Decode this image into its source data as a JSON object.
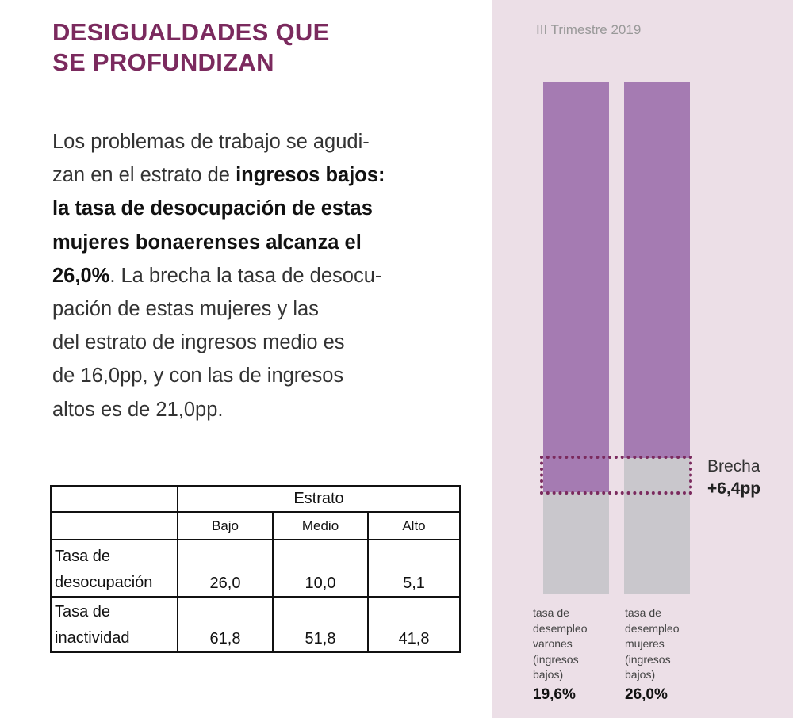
{
  "title": [
    "DESIGUALDADES QUE",
    "SE PROFUNDIZAN"
  ],
  "paragraph": {
    "l1": "Los problemas de trabajo se agudi-",
    "l2a": "zan en el estrato de ",
    "l2b": "ingresos bajos:",
    "l3": "la tasa de desocupación de estas",
    "l4": "mujeres bonaerenses alcanza el",
    "l5a": "26,0%",
    "l5b": ". La brecha la tasa de desocu-",
    "l6": "pación de estas mujeres y las",
    "l7": "del estrato de ingresos medio es",
    "l8": "de 16,0pp, y con las de ingresos",
    "l9": "altos es de 21,0pp."
  },
  "table": {
    "group_header": "Estrato",
    "columns": [
      "Bajo",
      "Medio",
      "Alto"
    ],
    "rows": [
      {
        "label1": "Tasa de",
        "label2": "desocupación",
        "values": [
          "26,0",
          "10,0",
          "5,1"
        ]
      },
      {
        "label1": "Tasa de",
        "label2": "inactividad",
        "values": [
          "61,8",
          "51,8",
          "41,8"
        ]
      }
    ]
  },
  "chart_data": {
    "type": "bar",
    "title": "III Trimestre 2019",
    "categories": [
      "tasa de desempleo varones (ingresos bajos)",
      "tasa de desempleo mujeres (ingresos bajos)"
    ],
    "values": [
      19.6,
      26.0
    ],
    "value_labels": [
      "19,6%",
      "26,0%"
    ],
    "label_lines": [
      [
        "tasa de",
        "desempleo",
        "varones",
        "(ingresos",
        "bajos)"
      ],
      [
        "tasa de",
        "desempleo",
        "mujeres",
        "(ingresos",
        "bajos)"
      ]
    ],
    "annotation": {
      "label": "Brecha",
      "value": "+6,4pp"
    },
    "colors": {
      "value": "#c9c7cc",
      "background_bar": "#a57bb2",
      "accent": "#7b2a5e",
      "panel": "#ecdfe7"
    }
  }
}
